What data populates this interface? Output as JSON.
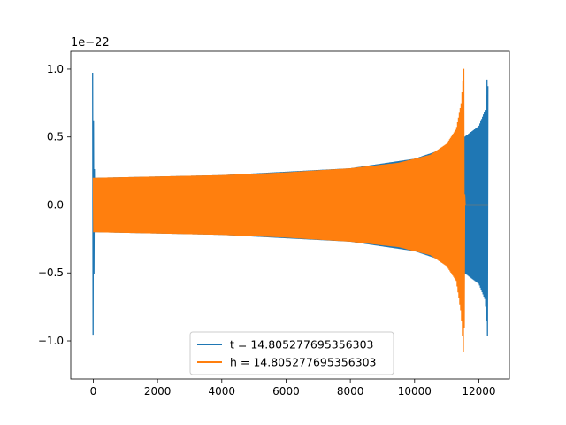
{
  "chart_data": {
    "type": "line",
    "title": "",
    "xlabel": "",
    "ylabel": "",
    "y_offset_label": "1e−22",
    "xlim": [
      -700,
      12950
    ],
    "ylim": [
      -1.28,
      1.13
    ],
    "x_ticks": [
      0,
      2000,
      4000,
      6000,
      8000,
      10000,
      12000
    ],
    "x_tick_labels": [
      "0",
      "2000",
      "4000",
      "6000",
      "8000",
      "10000",
      "12000"
    ],
    "y_ticks": [
      -1.0,
      -0.5,
      0.0,
      0.5,
      1.0
    ],
    "y_tick_labels": [
      "−1.0",
      "−0.5",
      "0.0",
      "0.5",
      "1.0"
    ],
    "grid": false,
    "legend_position": "lower center",
    "series": [
      {
        "name": "t = 14.805277695356303",
        "color": "#1f77b4",
        "x_start": -20,
        "x_end": 12290,
        "envelope": [
          {
            "x": -20,
            "upper": 0.97,
            "lower": -1.18
          },
          {
            "x": 40,
            "upper": 0.2,
            "lower": -0.2
          },
          {
            "x": 4000,
            "upper": 0.22,
            "lower": -0.22
          },
          {
            "x": 8000,
            "upper": 0.27,
            "lower": -0.27
          },
          {
            "x": 10000,
            "upper": 0.34,
            "lower": -0.34
          },
          {
            "x": 11000,
            "upper": 0.42,
            "lower": -0.42
          },
          {
            "x": 11550,
            "upper": 0.5,
            "lower": -0.5
          },
          {
            "x": 12000,
            "upper": 0.58,
            "lower": -0.58
          },
          {
            "x": 12200,
            "upper": 0.7,
            "lower": -0.7
          },
          {
            "x": 12280,
            "upper": 1.03,
            "lower": -1.01
          },
          {
            "x": 12290,
            "upper": 0.0,
            "lower": 0.0
          }
        ]
      },
      {
        "name": "h = 14.805277695356303",
        "color": "#ff7f0e",
        "x_start": 0,
        "x_end": 12290,
        "envelope": [
          {
            "x": 0,
            "upper": 0.2,
            "lower": -0.2
          },
          {
            "x": 2000,
            "upper": 0.21,
            "lower": -0.21
          },
          {
            "x": 4000,
            "upper": 0.22,
            "lower": -0.22
          },
          {
            "x": 6000,
            "upper": 0.24,
            "lower": -0.24
          },
          {
            "x": 8000,
            "upper": 0.27,
            "lower": -0.27
          },
          {
            "x": 9500,
            "upper": 0.31,
            "lower": -0.31
          },
          {
            "x": 10500,
            "upper": 0.37,
            "lower": -0.37
          },
          {
            "x": 11000,
            "upper": 0.45,
            "lower": -0.45
          },
          {
            "x": 11300,
            "upper": 0.56,
            "lower": -0.56
          },
          {
            "x": 11450,
            "upper": 0.75,
            "lower": -0.8
          },
          {
            "x": 11540,
            "upper": 1.03,
            "lower": -1.18
          },
          {
            "x": 11560,
            "upper": 0.0,
            "lower": 0.0
          },
          {
            "x": 12290,
            "upper": 0.0,
            "lower": 0.0
          }
        ]
      }
    ]
  }
}
